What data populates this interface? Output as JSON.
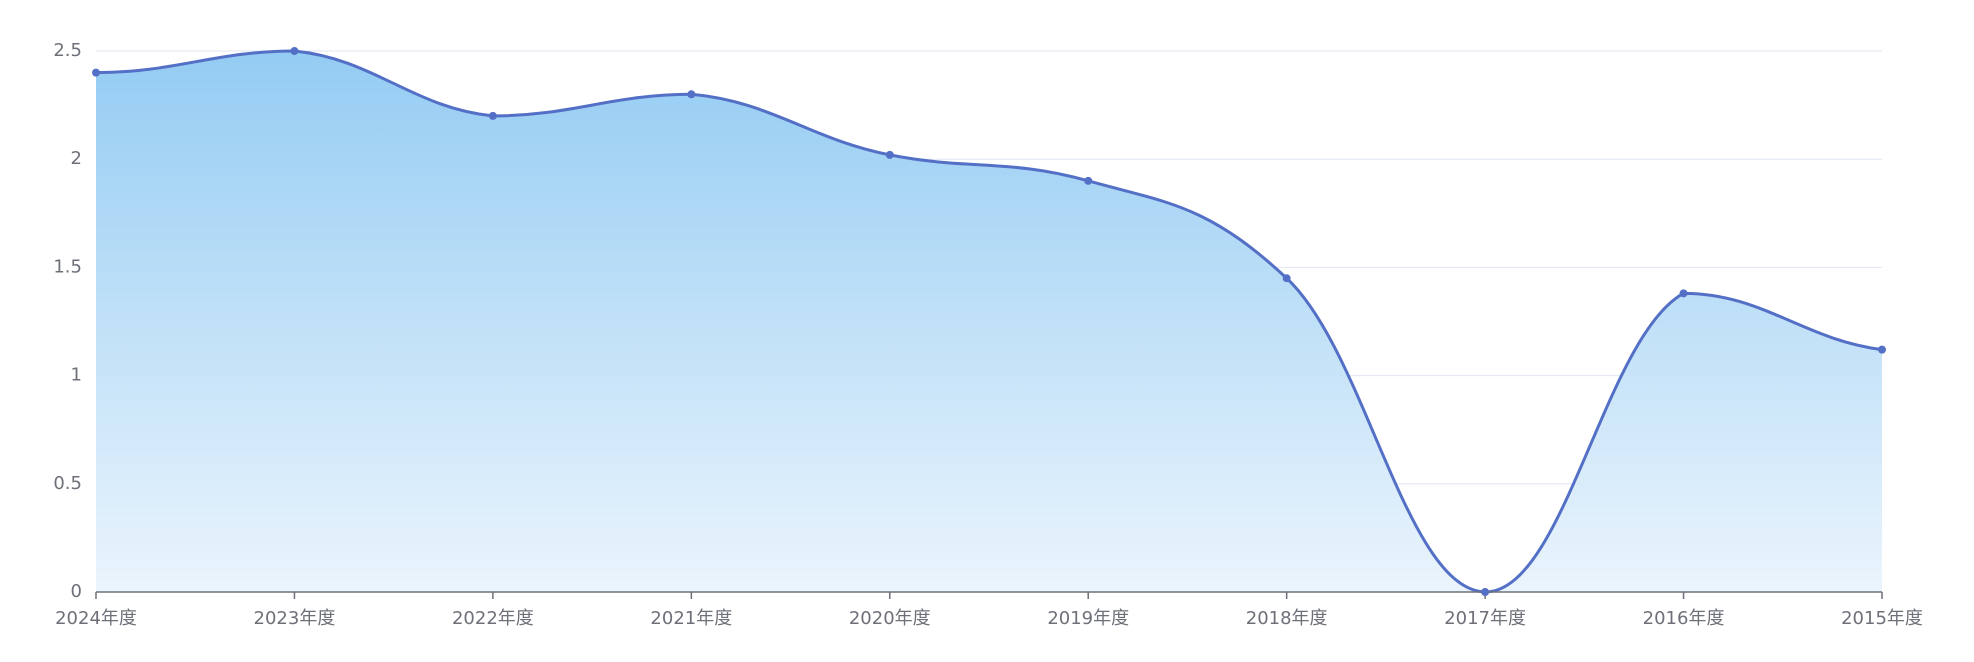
{
  "chart_data": {
    "type": "area",
    "categories": [
      "2024年度",
      "2023年度",
      "2022年度",
      "2021年度",
      "2020年度",
      "2019年度",
      "2018年度",
      "2017年度",
      "2016年度",
      "2015年度"
    ],
    "values": [
      2.4,
      2.5,
      2.2,
      2.3,
      2.02,
      1.9,
      1.45,
      0,
      1.38,
      1.12
    ],
    "color": "#5470c6",
    "ylim": [
      0,
      2.5
    ],
    "yticks": [
      0,
      0.5,
      1,
      1.5,
      2,
      2.5
    ],
    "grid": true
  }
}
